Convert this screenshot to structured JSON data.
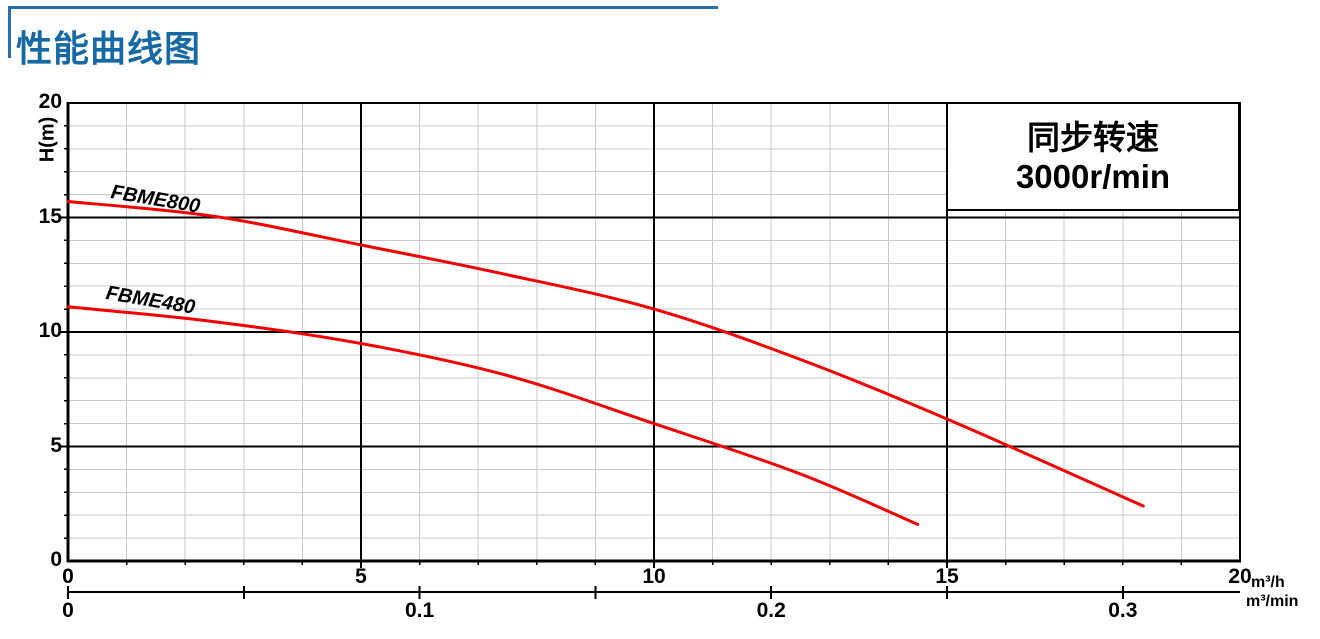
{
  "header": {
    "title": "性能曲线图"
  },
  "colors": {
    "title_blue": "#1769a3",
    "header_rule_blue": "#2a6ea9",
    "curve_red": "#f10000",
    "minor_grid": "#c9c9c9",
    "major_grid": "#000000"
  },
  "chart_data": {
    "type": "line",
    "title": "性能曲线图",
    "annotation_box": {
      "line1": "同步转速",
      "line2": "3000r/min"
    },
    "y_axis": {
      "label": "H(m)",
      "min": 0,
      "max": 20,
      "major_tick_step": 5,
      "minor_tick_step": 1,
      "tick_labels": [
        20,
        15,
        10,
        5,
        0
      ]
    },
    "x_axis_primary": {
      "unit": "m³/h",
      "min": 0,
      "max": 20,
      "major_tick_step": 5,
      "minor_tick_step": 1,
      "tick_labels": [
        0,
        5,
        10,
        15,
        20
      ]
    },
    "x_axis_secondary": {
      "unit": "m³/min",
      "min": 0,
      "max": 0.3,
      "tick_step": 0.05,
      "tick_labels": [
        "0",
        "0.1",
        "0.2",
        "0.3"
      ],
      "scale_to_primary": 60
    },
    "grid": true,
    "legend_position": "labels-on-curves",
    "curve_color": "#f10000",
    "series": [
      {
        "name": "FBME800",
        "points_m3h_H": [
          [
            0,
            15.7
          ],
          [
            2.5,
            15.05
          ],
          [
            5,
            13.8
          ],
          [
            7.5,
            12.5
          ],
          [
            10,
            11.0
          ],
          [
            12.5,
            8.8
          ],
          [
            15,
            6.2
          ],
          [
            18.35,
            2.4
          ]
        ]
      },
      {
        "name": "FBME480",
        "points_m3h_H": [
          [
            0,
            11.1
          ],
          [
            2.5,
            10.45
          ],
          [
            5,
            9.5
          ],
          [
            7.5,
            8.1
          ],
          [
            10,
            6.0
          ],
          [
            12.5,
            3.8
          ],
          [
            14.5,
            1.6
          ]
        ]
      }
    ]
  }
}
